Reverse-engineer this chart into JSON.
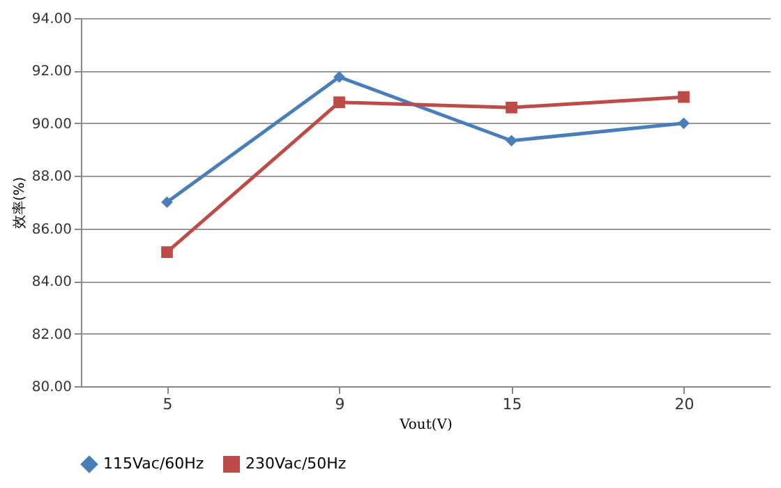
{
  "chart_data": {
    "type": "line",
    "xlabel": "Vout(V)",
    "ylabel": "效率(%)",
    "categories": [
      "5",
      "9",
      "15",
      "20"
    ],
    "series": [
      {
        "name": "115Vac/60Hz",
        "color": "#4a7ebb",
        "marker": "diamond",
        "values": [
          87.0,
          91.76,
          89.34,
          90.0
        ]
      },
      {
        "name": "230Vac/50Hz",
        "color": "#be4b48",
        "marker": "square",
        "values": [
          85.1,
          90.8,
          90.6,
          91.0
        ]
      }
    ],
    "ylim": [
      80,
      94
    ],
    "yticks": [
      {
        "value": 80,
        "label": "80.00"
      },
      {
        "value": 82,
        "label": "82.00"
      },
      {
        "value": 84,
        "label": "84.00"
      },
      {
        "value": 86,
        "label": "86.00"
      },
      {
        "value": 88,
        "label": "88.00"
      },
      {
        "value": 90,
        "label": "90.00"
      },
      {
        "value": 92,
        "label": "92.00"
      },
      {
        "value": 94,
        "label": "94.00"
      }
    ],
    "grid": "y",
    "legend": "bottom",
    "line_style": "solid"
  }
}
